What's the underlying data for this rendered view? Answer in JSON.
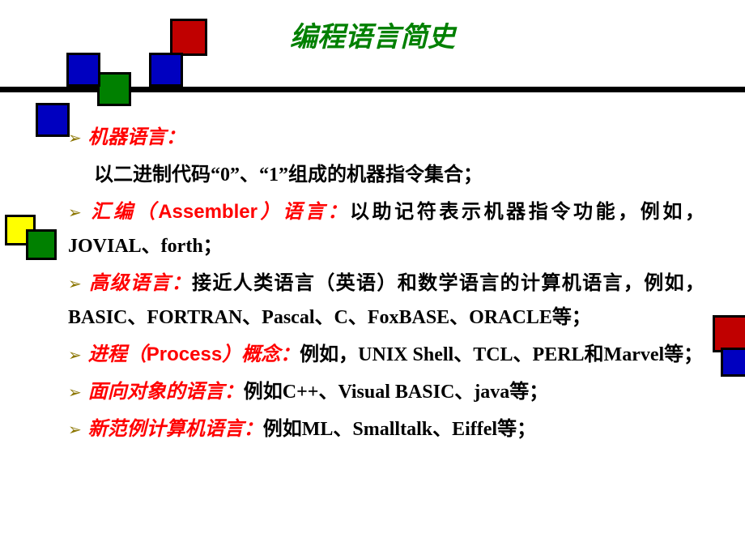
{
  "title": "编程语言简史",
  "colors": {
    "title": "#008000",
    "heading": "#ff0000",
    "arrow": "#8b7500",
    "body": "#000000",
    "red_sq": "#c00000",
    "green_sq": "#008000",
    "blue_sq": "#0000c0",
    "yellow_sq": "#ffff00"
  },
  "items": [
    {
      "heading": "机器语言：",
      "sub": "以二进制代码“0”、“1”组成的机器指令集合；"
    },
    {
      "heading_parts": [
        "汇编（",
        "Assembler",
        "）语言："
      ],
      "body": "以助记符表示机器指令功能，例如，JOVIAL、forth；"
    },
    {
      "heading": "高级语言：",
      "body": "接近人类语言（英语）和数学语言的计算机语言，例如，BASIC、FORTRAN、Pascal、C、FoxBASE、ORACLE等；"
    },
    {
      "heading_parts": [
        "进程（",
        "Process",
        "）概念："
      ],
      "body": "例如，UNIX Shell、TCL、PERL和Marvel等；"
    },
    {
      "heading": "面向对象的语言：",
      "body": "例如C++、Visual BASIC、java等；"
    },
    {
      "heading": "新范例计算机语言：",
      "body": "例如ML、Smalltalk、Eiffel等；"
    }
  ],
  "arrow_glyph": "➢"
}
